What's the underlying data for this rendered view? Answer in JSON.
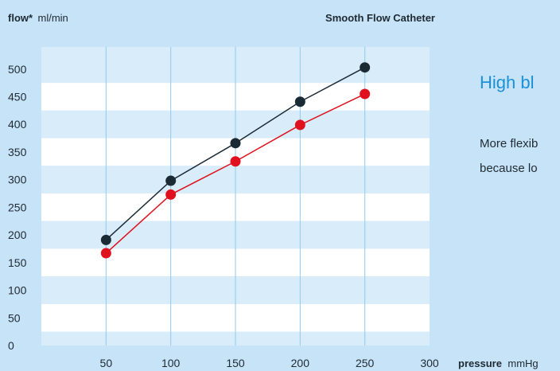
{
  "chart_data": {
    "type": "line",
    "title": "Smooth Flow Catheter",
    "ylabel_bold": "flow*",
    "ylabel_unit": "ml/min",
    "xlabel_bold": "pressure",
    "xlabel_unit": "mmHg",
    "x": [
      50,
      100,
      150,
      200,
      250
    ],
    "xticks": [
      50,
      100,
      150,
      200,
      250,
      300
    ],
    "yticks": [
      0,
      50,
      100,
      150,
      200,
      250,
      300,
      350,
      400,
      450,
      500
    ],
    "xlim": [
      0,
      300
    ],
    "ylim": [
      0,
      540
    ],
    "series": [
      {
        "values": [
          191,
          298,
          366,
          441,
          503
        ],
        "color": "#1b2b36"
      },
      {
        "values": [
          167,
          273,
          333,
          399,
          455
        ],
        "color": "#e0101e"
      }
    ]
  },
  "side": {
    "heading": "High bl",
    "lines": [
      "More flexib",
      "because lo"
    ]
  }
}
